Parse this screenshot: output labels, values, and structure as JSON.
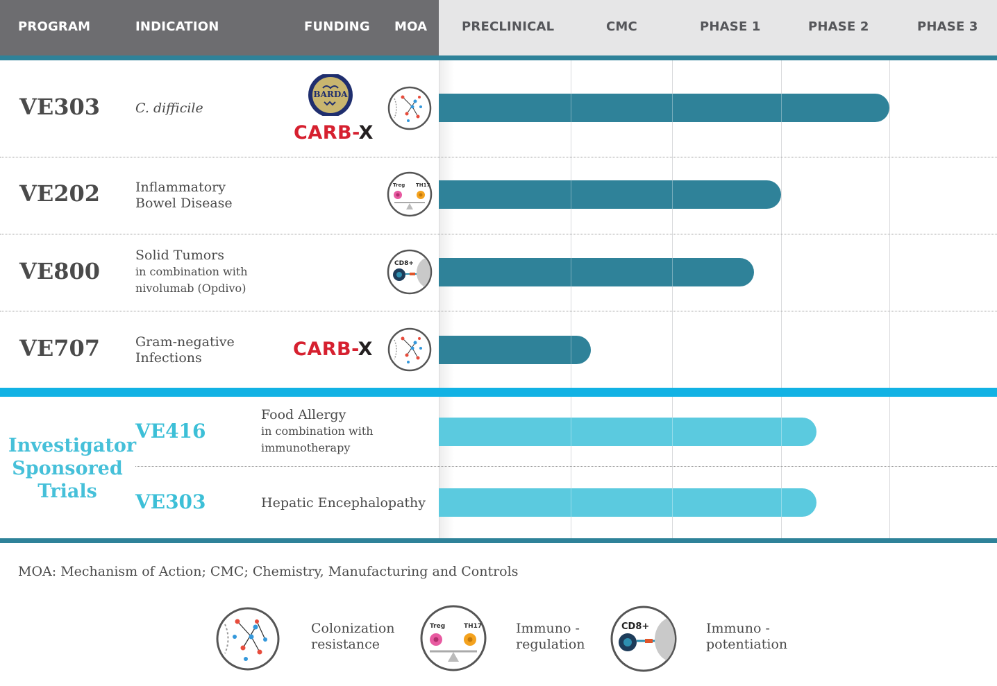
{
  "header": {
    "program": "PROGRAM",
    "indication": "INDICATION",
    "funding": "FUNDING",
    "moa": "MOA"
  },
  "chart_data": {
    "type": "bar",
    "orientation": "horizontal",
    "stages": [
      "PRECLINICAL",
      "CMC",
      "PHASE 1",
      "PHASE 2",
      "PHASE 3"
    ],
    "rows": [
      {
        "program": "VE303",
        "indication_lines": [
          "C. difficile"
        ],
        "funding": [
          "BARDA",
          "CARB-X"
        ],
        "moa": "Colonization resistance",
        "progress_stage": 4.0,
        "group": "company",
        "color": "#2f8299"
      },
      {
        "program": "VE202",
        "indication_lines": [
          "Inflammatory",
          "Bowel Disease"
        ],
        "funding": [],
        "moa": "Immuno - regulation",
        "progress_stage": 3.0,
        "group": "company",
        "color": "#2f8299"
      },
      {
        "program": "VE800",
        "indication_lines": [
          "Solid Tumors",
          "in combination with",
          "nivolumab (Opdivo)"
        ],
        "funding": [],
        "moa": "Immuno - potentiation",
        "progress_stage": 2.75,
        "group": "company",
        "color": "#2f8299"
      },
      {
        "program": "VE707",
        "indication_lines": [
          "Gram-negative",
          "Infections"
        ],
        "funding": [
          "CARB-X"
        ],
        "moa": "Colonization resistance",
        "progress_stage": 1.2,
        "group": "company",
        "color": "#2f8299"
      },
      {
        "program": "VE416",
        "indication_lines": [
          "Food Allergy",
          "in combination with",
          "immunotherapy"
        ],
        "funding": [],
        "moa": "",
        "progress_stage": 3.33,
        "group": "investigator",
        "color": "#5bcadf"
      },
      {
        "program": "VE303",
        "indication_lines": [
          "Hepatic Encephalopathy"
        ],
        "funding": [],
        "moa": "",
        "progress_stage": 3.33,
        "group": "investigator",
        "color": "#5bcadf"
      }
    ]
  },
  "investigator_label": [
    "Investigator",
    "Sponsored",
    "Trials"
  ],
  "funding_logos": {
    "barda": "BARDA",
    "carbx_prefix": "CARB-",
    "carbx_suffix": "X"
  },
  "cell_labels": {
    "treg": "Treg",
    "th17": "TH17",
    "cd8": "CD8+"
  },
  "footnote": "MOA: Mechanism of Action; CMC; Chemistry, Manufacturing and Controls",
  "legend": [
    {
      "icon": "colonization-resistance-icon",
      "lines": [
        "Colonization",
        "resistance"
      ]
    },
    {
      "icon": "immuno-regulation-icon",
      "lines": [
        "Immuno -",
        "regulation"
      ]
    },
    {
      "icon": "immuno-potentiation-icon",
      "lines": [
        "Immuno -",
        "potentiation"
      ]
    }
  ],
  "colors": {
    "header_dark": "#6d6d70",
    "header_light": "#e6e6e7",
    "teal": "#2e8299",
    "light_teal": "#5bcadf",
    "separator_blue": "#12b2e4",
    "carbx_red": "#d6202f"
  }
}
